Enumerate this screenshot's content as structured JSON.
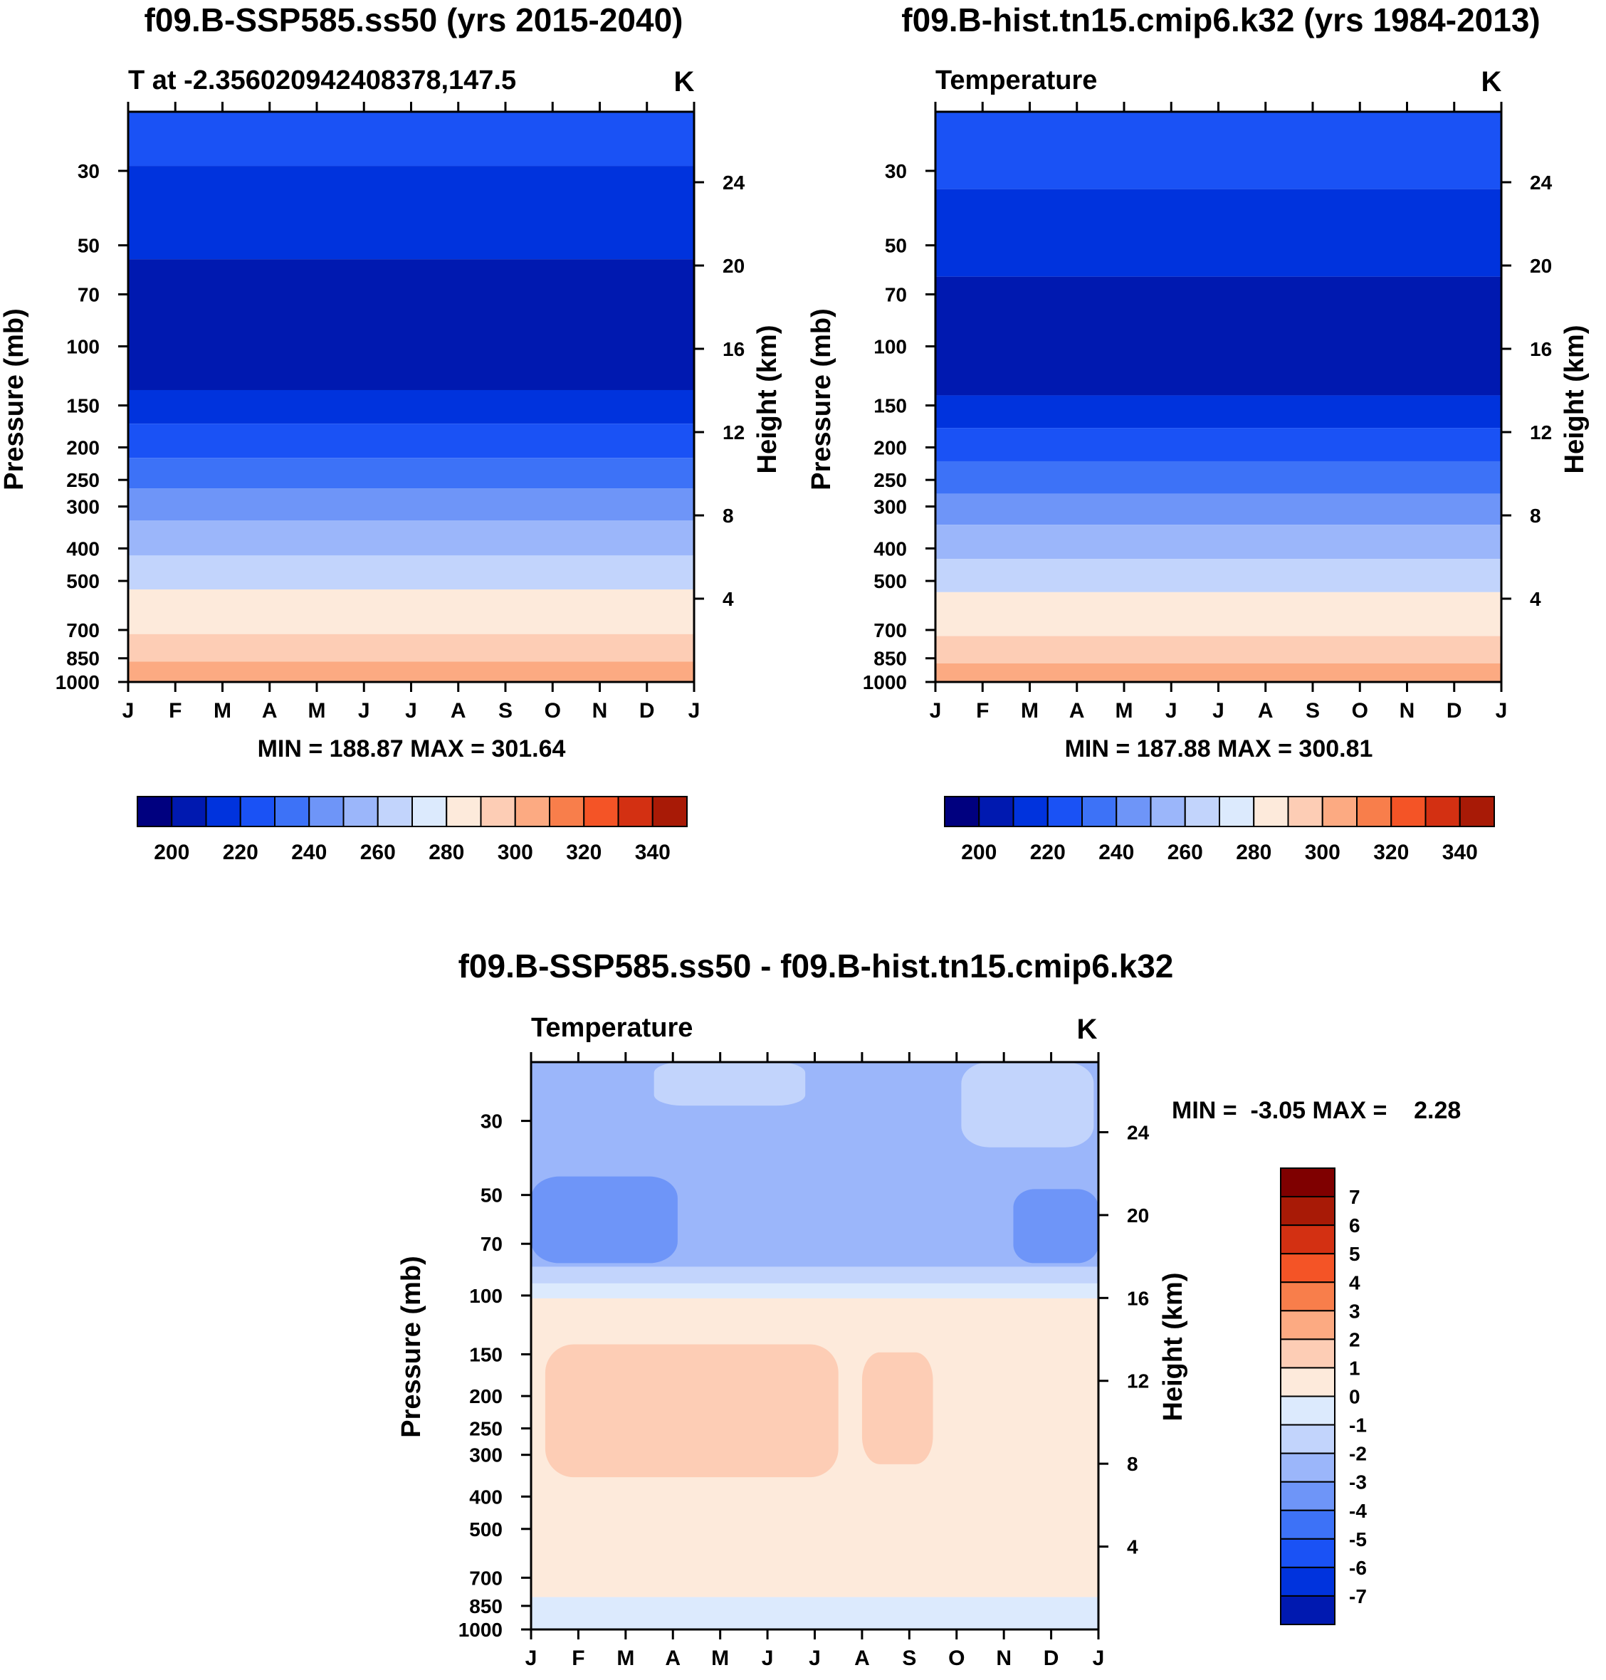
{
  "chart_data": [
    {
      "type": "heatmap",
      "title": "f09.B-SSP585.ss50 (yrs 2015-2040)",
      "subtitle_left": "T at -2.356020942408378,147.5",
      "units": "K",
      "ylabel": "Pressure (mb)",
      "ylabel_right": "Height (km)",
      "months": [
        "J",
        "F",
        "M",
        "A",
        "M",
        "J",
        "J",
        "A",
        "S",
        "O",
        "N",
        "D",
        "J"
      ],
      "pressure_ticks": [
        30,
        50,
        70,
        100,
        150,
        200,
        250,
        300,
        400,
        500,
        700,
        850,
        1000
      ],
      "height_ticks": [
        24,
        20,
        16,
        12,
        8,
        4
      ],
      "ylim": [
        20,
        1000
      ],
      "minmax": "MIN = 188.87 MAX = 301.64",
      "levels": [
        200,
        210,
        220,
        230,
        240,
        250,
        260,
        270,
        280,
        290,
        300
      ],
      "bands": [
        {
          "p_top": 20,
          "p_bot": 29,
          "value": 215
        },
        {
          "p_top": 29,
          "p_bot": 55,
          "value": 205
        },
        {
          "p_top": 55,
          "p_bot": 135,
          "value": 195
        },
        {
          "p_top": 135,
          "p_bot": 170,
          "value": 205
        },
        {
          "p_top": 170,
          "p_bot": 215,
          "value": 215
        },
        {
          "p_top": 215,
          "p_bot": 265,
          "value": 225
        },
        {
          "p_top": 265,
          "p_bot": 330,
          "value": 235
        },
        {
          "p_top": 330,
          "p_bot": 420,
          "value": 245
        },
        {
          "p_top": 420,
          "p_bot": 530,
          "value": 255
        },
        {
          "p_top": 530,
          "p_bot": 720,
          "value": 275
        },
        {
          "p_top": 720,
          "p_bot": 870,
          "value": 285
        },
        {
          "p_top": 870,
          "p_bot": 995,
          "value": 295
        }
      ],
      "colorbar": {
        "labels": [
          "200",
          "220",
          "240",
          "260",
          "280",
          "300",
          "320",
          "340"
        ]
      }
    },
    {
      "type": "heatmap",
      "title": "f09.B-hist.tn15.cmip6.k32 (yrs 1984-2013)",
      "subtitle_left": "Temperature",
      "units": "K",
      "ylabel": "Pressure (mb)",
      "ylabel_right": "Height (km)",
      "months": [
        "J",
        "F",
        "M",
        "A",
        "M",
        "J",
        "J",
        "A",
        "S",
        "O",
        "N",
        "D",
        "J"
      ],
      "pressure_ticks": [
        30,
        50,
        70,
        100,
        150,
        200,
        250,
        300,
        400,
        500,
        700,
        850,
        1000
      ],
      "height_ticks": [
        24,
        20,
        16,
        12,
        8,
        4
      ],
      "ylim": [
        20,
        1000
      ],
      "minmax": "MIN = 187.88 MAX = 300.81",
      "levels": [
        200,
        210,
        220,
        230,
        240,
        250,
        260,
        270,
        280,
        290,
        300
      ],
      "bands": [
        {
          "p_top": 20,
          "p_bot": 34,
          "value": 215
        },
        {
          "p_top": 34,
          "p_bot": 62,
          "value": 205
        },
        {
          "p_top": 62,
          "p_bot": 140,
          "value": 195
        },
        {
          "p_top": 140,
          "p_bot": 175,
          "value": 205
        },
        {
          "p_top": 175,
          "p_bot": 220,
          "value": 215
        },
        {
          "p_top": 220,
          "p_bot": 275,
          "value": 225
        },
        {
          "p_top": 275,
          "p_bot": 340,
          "value": 235
        },
        {
          "p_top": 340,
          "p_bot": 430,
          "value": 245
        },
        {
          "p_top": 430,
          "p_bot": 540,
          "value": 255
        },
        {
          "p_top": 540,
          "p_bot": 730,
          "value": 275
        },
        {
          "p_top": 730,
          "p_bot": 880,
          "value": 285
        },
        {
          "p_top": 880,
          "p_bot": 995,
          "value": 295
        }
      ],
      "colorbar": {
        "labels": [
          "200",
          "220",
          "240",
          "260",
          "280",
          "300",
          "320",
          "340"
        ]
      }
    },
    {
      "type": "heatmap",
      "title": "f09.B-SSP585.ss50 - f09.B-hist.tn15.cmip6.k32",
      "subtitle_left": "Temperature",
      "units": "K",
      "ylabel": "Pressure (mb)",
      "ylabel_right": "Height (km)",
      "months": [
        "J",
        "F",
        "M",
        "A",
        "M",
        "J",
        "J",
        "A",
        "S",
        "O",
        "N",
        "D",
        "J"
      ],
      "pressure_ticks": [
        30,
        50,
        70,
        100,
        150,
        200,
        250,
        300,
        400,
        500,
        700,
        850,
        1000
      ],
      "height_ticks": [
        24,
        20,
        16,
        12,
        8,
        4
      ],
      "ylim": [
        20,
        1000
      ],
      "minmax": "MIN =  -3.05 MAX =    2.28",
      "levels": [
        -7,
        -6,
        -5,
        -4,
        -3,
        -2,
        -1,
        0,
        1,
        2,
        3,
        4,
        5,
        6,
        7
      ],
      "bands": [
        {
          "p_top": 20,
          "p_bot": 82,
          "value": -1.5
        },
        {
          "p_top": 82,
          "p_bot": 92,
          "value": -0.5
        },
        {
          "p_top": 92,
          "p_bot": 102,
          "value": 0.5
        },
        {
          "p_top": 102,
          "p_bot": 800,
          "value": 1.5
        },
        {
          "p_top": 800,
          "p_bot": 1000,
          "value": 0.5
        }
      ],
      "patches": [
        {
          "month_from": 0,
          "month_to": 3.1,
          "p_top": 44,
          "p_bot": 80,
          "value": -2.5
        },
        {
          "month_from": 10.2,
          "month_to": 12,
          "p_top": 48,
          "p_bot": 80,
          "value": -2.5
        },
        {
          "month_from": 2.6,
          "month_to": 5.8,
          "p_top": 20,
          "p_bot": 27,
          "value": -0.5
        },
        {
          "month_from": 9.1,
          "month_to": 11.9,
          "p_top": 20,
          "p_bot": 36,
          "value": -0.5
        },
        {
          "month_from": 0.3,
          "month_to": 6.5,
          "p_top": 140,
          "p_bot": 350,
          "value": 2.5
        },
        {
          "month_from": 7.0,
          "month_to": 8.5,
          "p_top": 148,
          "p_bot": 320,
          "value": 2.5
        },
        {
          "month_from": 5.5,
          "month_to": 6.9,
          "p_top": 810,
          "p_bot": 930,
          "value": 0.5
        }
      ],
      "colorbar": {
        "labels": [
          "7",
          "6",
          "5",
          "4",
          "3",
          "2",
          "1",
          "0",
          "-1",
          "-2",
          "-3",
          "-4",
          "-5",
          "-6",
          "-7"
        ]
      }
    }
  ],
  "palette": [
    "#00007f",
    "#0019b0",
    "#0033dd",
    "#1a52f5",
    "#3d72f7",
    "#6e95f8",
    "#9bb6fa",
    "#c2d4fc",
    "#dceafd",
    "#fdeadb",
    "#fdcdb5",
    "#fcaa82",
    "#f87e4b",
    "#f45426",
    "#d33012",
    "#a81a06",
    "#7f0000"
  ],
  "colorbar_palette_abs": [
    "#00007f",
    "#0019b0",
    "#0033dd",
    "#1a52f5",
    "#3d72f7",
    "#6e95f8",
    "#9bb6fa",
    "#c2d4fc",
    "#dceafd",
    "#fdeadb",
    "#fdcdb5",
    "#fcaa82",
    "#f87e4b",
    "#f45426",
    "#d33012",
    "#a81a06",
    "#7f0000"
  ],
  "colorbar_palette_diff": [
    "#7f0000",
    "#a81a06",
    "#d33012",
    "#f45426",
    "#f87e4b",
    "#fcaa82",
    "#fdcdb5",
    "#fdeadb",
    "#dceafd",
    "#c2d4fc",
    "#9bb6fa",
    "#6e95f8",
    "#3d72f7",
    "#1a52f5",
    "#0033dd",
    "#0019b0",
    "#00007f"
  ]
}
